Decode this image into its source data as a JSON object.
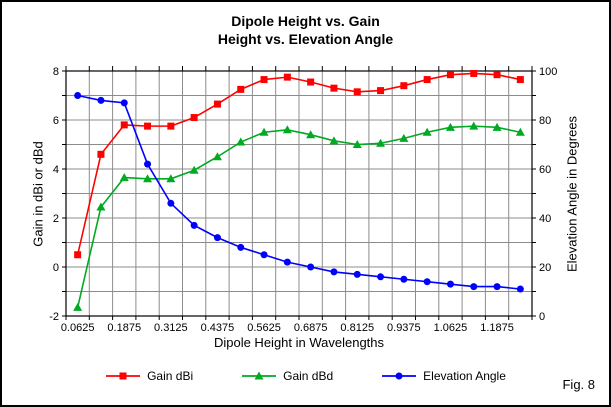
{
  "figure": {
    "title_line1": "Dipole Height vs. Gain",
    "title_line2": "Height vs. Elevation Angle",
    "caption": "Fig. 8"
  },
  "chart_data": {
    "type": "line",
    "title": "Dipole Height vs. Gain — Height vs. Elevation Angle",
    "xlabel": "Dipole Height in Wavelengths",
    "ylabel_left": "Gain in dBi or dBd",
    "ylabel_right": "Elevation Angle in Degrees",
    "ylim_left": [
      -2,
      8
    ],
    "ylim_right": [
      0,
      100
    ],
    "grid": true,
    "legend_position": "bottom",
    "x": [
      0.0625,
      0.125,
      0.1875,
      0.25,
      0.3125,
      0.375,
      0.4375,
      0.5,
      0.5625,
      0.625,
      0.6875,
      0.75,
      0.8125,
      0.875,
      0.9375,
      1.0,
      1.0625,
      1.125,
      1.1875,
      1.25
    ],
    "x_tick_labels": [
      "0.0625",
      "0.1875",
      "0.3125",
      "0.4375",
      "0.5625",
      "0.6875",
      "0.8125",
      "0.9375",
      "1.0625",
      "1.1875"
    ],
    "y_ticks_left": [
      8,
      6,
      4,
      2,
      0,
      -2
    ],
    "y_ticks_right": [
      100,
      80,
      60,
      40,
      20,
      0
    ],
    "colors": {
      "gridline": "#8c8c8c",
      "axis": "#000000"
    },
    "series": [
      {
        "name": "Gain dBi",
        "axis": "left",
        "color": "#FF0000",
        "marker": "square",
        "values": [
          0.5,
          4.6,
          5.8,
          5.75,
          5.75,
          6.1,
          6.65,
          7.25,
          7.65,
          7.75,
          7.55,
          7.3,
          7.15,
          7.2,
          7.4,
          7.65,
          7.85,
          7.9,
          7.85,
          7.65
        ]
      },
      {
        "name": "Gain dBd",
        "axis": "left",
        "color": "#00AA22",
        "marker": "triangle",
        "values": [
          -1.65,
          2.45,
          3.65,
          3.6,
          3.6,
          3.95,
          4.5,
          5.1,
          5.5,
          5.6,
          5.4,
          5.15,
          5.0,
          5.05,
          5.25,
          5.5,
          5.7,
          5.75,
          5.7,
          5.5
        ]
      },
      {
        "name": "Elevation Angle",
        "axis": "right",
        "color": "#0000FF",
        "marker": "circle",
        "values": [
          90,
          88,
          87,
          62,
          46,
          37,
          32,
          28,
          25,
          22,
          20,
          18,
          17,
          16,
          15,
          14,
          13,
          12,
          12,
          11
        ]
      }
    ]
  }
}
